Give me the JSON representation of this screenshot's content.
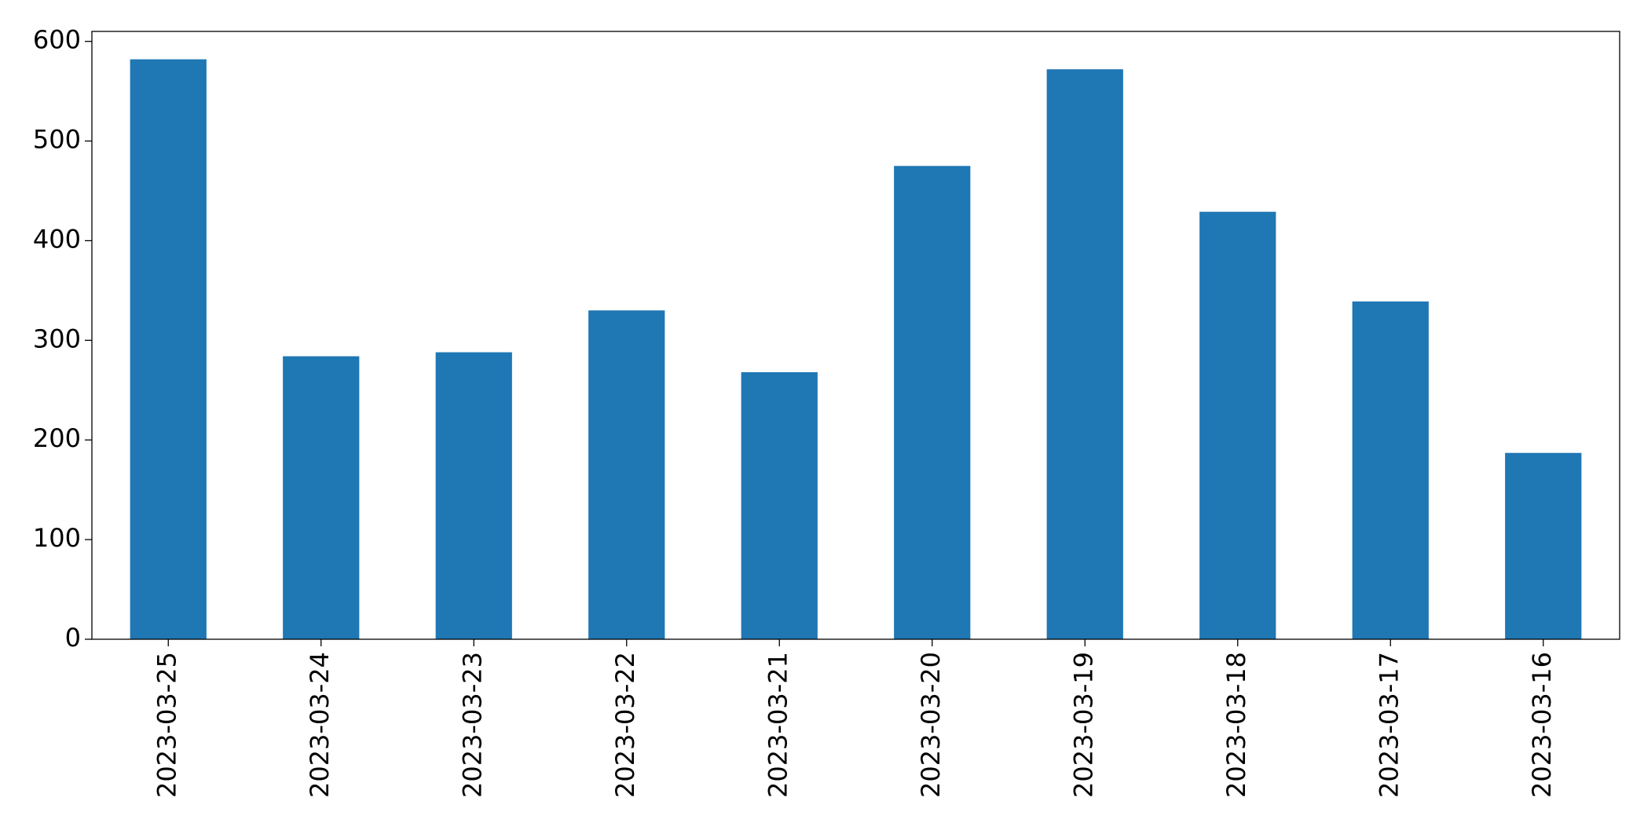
{
  "chart_data": {
    "type": "bar",
    "categories": [
      "2023-03-25",
      "2023-03-24",
      "2023-03-23",
      "2023-03-22",
      "2023-03-21",
      "2023-03-20",
      "2023-03-19",
      "2023-03-18",
      "2023-03-17",
      "2023-03-16"
    ],
    "values": [
      582,
      284,
      288,
      330,
      268,
      475,
      572,
      429,
      339,
      187
    ],
    "color": "#1f77b4",
    "ylim": [
      0,
      610
    ],
    "yticks": [
      0,
      100,
      200,
      300,
      400,
      500,
      600
    ],
    "grid": false
  }
}
